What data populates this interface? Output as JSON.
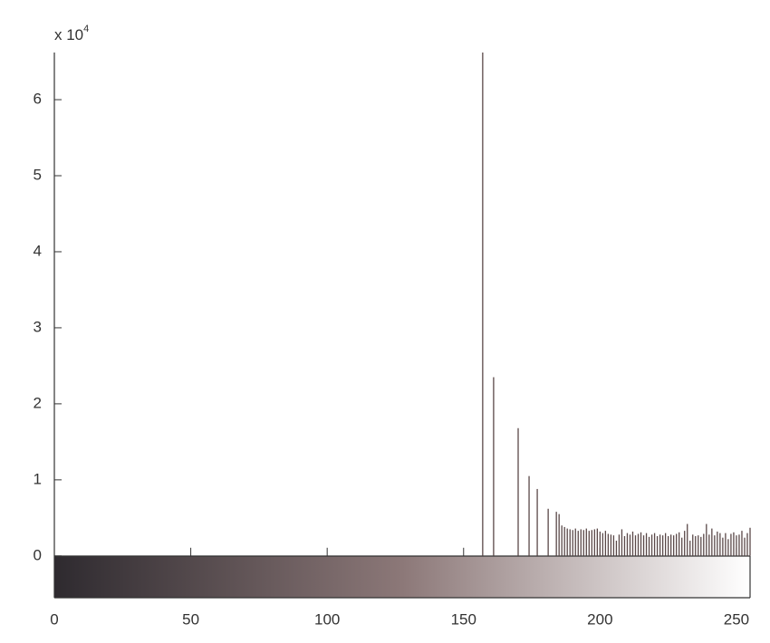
{
  "chart_data": {
    "type": "stem",
    "y_multiplier": {
      "base": "x 10",
      "exponent": "4"
    },
    "x": [
      157,
      161,
      170,
      174,
      177,
      181,
      184,
      185,
      186,
      187,
      188,
      189,
      190,
      191,
      192,
      193,
      194,
      195,
      196,
      197,
      198,
      199,
      200,
      201,
      202,
      203,
      204,
      205,
      206,
      207,
      208,
      209,
      210,
      211,
      212,
      213,
      214,
      215,
      216,
      217,
      218,
      219,
      220,
      221,
      222,
      223,
      224,
      225,
      226,
      227,
      228,
      229,
      230,
      231,
      232,
      233,
      234,
      235,
      236,
      237,
      238,
      239,
      240,
      241,
      242,
      243,
      244,
      245,
      246,
      247,
      248,
      249,
      250,
      251,
      252,
      253,
      254,
      255
    ],
    "values": [
      6.62,
      2.35,
      1.68,
      1.05,
      0.88,
      0.62,
      0.58,
      0.55,
      0.4,
      0.38,
      0.36,
      0.35,
      0.34,
      0.36,
      0.33,
      0.35,
      0.34,
      0.36,
      0.33,
      0.34,
      0.35,
      0.36,
      0.32,
      0.3,
      0.33,
      0.29,
      0.28,
      0.27,
      0.2,
      0.28,
      0.35,
      0.26,
      0.3,
      0.28,
      0.32,
      0.27,
      0.29,
      0.31,
      0.27,
      0.3,
      0.25,
      0.28,
      0.3,
      0.26,
      0.28,
      0.27,
      0.3,
      0.26,
      0.28,
      0.27,
      0.29,
      0.31,
      0.24,
      0.33,
      0.42,
      0.2,
      0.28,
      0.26,
      0.27,
      0.25,
      0.29,
      0.42,
      0.28,
      0.36,
      0.27,
      0.32,
      0.3,
      0.24,
      0.3,
      0.22,
      0.29,
      0.31,
      0.27,
      0.28,
      0.33,
      0.24,
      0.3,
      0.37
    ],
    "color": "#5a4848",
    "xlim": [
      0,
      255
    ],
    "xticks": [
      0,
      50,
      100,
      150,
      200,
      250
    ],
    "ylim": [
      -0.55,
      6.62
    ],
    "yticks": [
      0,
      1,
      2,
      3,
      4,
      5,
      6
    ]
  }
}
